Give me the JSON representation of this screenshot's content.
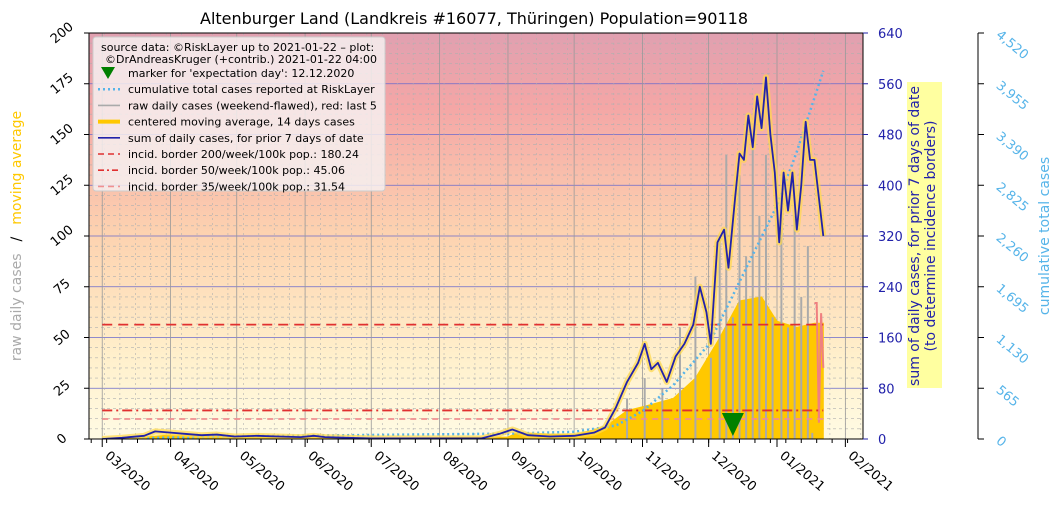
{
  "chart_data": {
    "type": "line",
    "title": "Altenburger Land (Landkreis #16077, Thüringen) Population=90118",
    "ylabel_left": [
      "raw daily cases",
      "/",
      "moving average"
    ],
    "ylabel_right": [
      "sum of daily cases, for prior 7 days of date",
      "(to determine incidence borders)"
    ],
    "ylabel_far_right": "cumulative total cases",
    "left_ylim": [
      0,
      200
    ],
    "left_ticks": [
      "0",
      "25",
      "50",
      "75",
      "100",
      "125",
      "150",
      "175",
      "200"
    ],
    "right_ylim": [
      0,
      640
    ],
    "right_ticks": [
      "0",
      "80",
      "160",
      "240",
      "320",
      "400",
      "480",
      "560",
      "640"
    ],
    "far_right_ylim": [
      0,
      4520
    ],
    "far_right_ticks": [
      "0",
      "565",
      "1,130",
      "1,695",
      "2,260",
      "2,825",
      "3,390",
      "3,955",
      "4,520"
    ],
    "x_ticks": [
      "03/2020",
      "04/2020",
      "05/2020",
      "06/2020",
      "07/2020",
      "08/2020",
      "09/2020",
      "10/2020",
      "11/2020",
      "12/2020",
      "01/2021",
      "02/2021"
    ],
    "legend": {
      "source": "source data: ©RiskLayer up to 2021-01-22 – plot:",
      "source2": "©DrAndreasKruger (+contrib.) 2021-01-22 04:00",
      "entries": [
        {
          "label": "marker for 'expectation day': 12.12.2020",
          "color": "#008000",
          "style": "triangle"
        },
        {
          "label": "cumulative total cases reported at RiskLayer",
          "color": "#56b4e9",
          "style": "dotted"
        },
        {
          "label": "raw daily cases (weekend-flawed), red: last 5",
          "color": "#aaaaaa",
          "style": "solid"
        },
        {
          "label": "centered moving average, 14 days cases",
          "color": "#ffc800",
          "style": "thick"
        },
        {
          "label": "sum of daily cases, for prior 7 days of date",
          "color": "#2222aa",
          "style": "solid"
        },
        {
          "label": "incid. border 200/week/100k pop.: 180.24",
          "color": "#e03030",
          "style": "dashed"
        },
        {
          "label": "incid. border 50/week/100k pop.: 45.06",
          "color": "#e03030",
          "style": "dashdot"
        },
        {
          "label": "incid. border 35/week/100k pop.: 31.54",
          "color": "#f09090",
          "style": "dashed"
        }
      ]
    },
    "incidence_borders": [
      180.24,
      45.06,
      31.54
    ],
    "expectation_day": "2020-12-12",
    "weekly_sum": [
      [
        "2020-03-01",
        0
      ],
      [
        "2020-03-10",
        2
      ],
      [
        "2020-03-20",
        5
      ],
      [
        "2020-03-25",
        12
      ],
      [
        "2020-04-01",
        10
      ],
      [
        "2020-04-08",
        8
      ],
      [
        "2020-04-15",
        6
      ],
      [
        "2020-04-22",
        7
      ],
      [
        "2020-04-30",
        4
      ],
      [
        "2020-05-10",
        5
      ],
      [
        "2020-05-20",
        4
      ],
      [
        "2020-05-30",
        3
      ],
      [
        "2020-06-05",
        5
      ],
      [
        "2020-06-10",
        3
      ],
      [
        "2020-06-20",
        2
      ],
      [
        "2020-07-01",
        1
      ],
      [
        "2020-07-15",
        1
      ],
      [
        "2020-08-01",
        1
      ],
      [
        "2020-08-20",
        1
      ],
      [
        "2020-08-28",
        8
      ],
      [
        "2020-09-03",
        15
      ],
      [
        "2020-09-10",
        6
      ],
      [
        "2020-09-20",
        4
      ],
      [
        "2020-10-01",
        5
      ],
      [
        "2020-10-10",
        10
      ],
      [
        "2020-10-15",
        18
      ],
      [
        "2020-10-20",
        50
      ],
      [
        "2020-10-25",
        90
      ],
      [
        "2020-10-30",
        120
      ],
      [
        "2020-11-02",
        150
      ],
      [
        "2020-11-05",
        110
      ],
      [
        "2020-11-08",
        120
      ],
      [
        "2020-11-12",
        90
      ],
      [
        "2020-11-16",
        130
      ],
      [
        "2020-11-20",
        150
      ],
      [
        "2020-11-24",
        180
      ],
      [
        "2020-11-27",
        240
      ],
      [
        "2020-11-30",
        200
      ],
      [
        "2020-12-02",
        150
      ],
      [
        "2020-12-05",
        310
      ],
      [
        "2020-12-08",
        330
      ],
      [
        "2020-12-10",
        270
      ],
      [
        "2020-12-13",
        380
      ],
      [
        "2020-12-15",
        450
      ],
      [
        "2020-12-17",
        440
      ],
      [
        "2020-12-19",
        510
      ],
      [
        "2020-12-21",
        460
      ],
      [
        "2020-12-23",
        540
      ],
      [
        "2020-12-25",
        490
      ],
      [
        "2020-12-27",
        570
      ],
      [
        "2020-12-29",
        480
      ],
      [
        "2020-12-31",
        420
      ],
      [
        "2021-01-02",
        310
      ],
      [
        "2021-01-04",
        420
      ],
      [
        "2021-01-06",
        360
      ],
      [
        "2021-01-08",
        420
      ],
      [
        "2021-01-10",
        330
      ],
      [
        "2021-01-12",
        400
      ],
      [
        "2021-01-14",
        500
      ],
      [
        "2021-01-16",
        440
      ],
      [
        "2021-01-18",
        440
      ],
      [
        "2021-01-20",
        380
      ],
      [
        "2021-01-22",
        320
      ]
    ],
    "cumulative": [
      [
        "2020-03-01",
        0
      ],
      [
        "2020-05-01",
        30
      ],
      [
        "2020-07-01",
        45
      ],
      [
        "2020-09-01",
        60
      ],
      [
        "2020-10-01",
        80
      ],
      [
        "2020-10-20",
        150
      ],
      [
        "2020-11-01",
        310
      ],
      [
        "2020-11-15",
        600
      ],
      [
        "2020-12-01",
        1050
      ],
      [
        "2020-12-15",
        1750
      ],
      [
        "2021-01-01",
        2600
      ],
      [
        "2021-01-10",
        3200
      ],
      [
        "2021-01-22",
        4100
      ]
    ],
    "moving_average": [
      [
        "2020-03-01",
        0
      ],
      [
        "2020-03-20",
        1
      ],
      [
        "2020-04-01",
        2
      ],
      [
        "2020-05-01",
        1
      ],
      [
        "2020-07-01",
        0.3
      ],
      [
        "2020-09-01",
        1
      ],
      [
        "2020-09-05",
        3
      ],
      [
        "2020-10-01",
        2
      ],
      [
        "2020-10-15",
        6
      ],
      [
        "2020-10-25",
        14
      ],
      [
        "2020-11-05",
        17
      ],
      [
        "2020-11-15",
        20
      ],
      [
        "2020-11-25",
        30
      ],
      [
        "2020-12-05",
        48
      ],
      [
        "2020-12-15",
        68
      ],
      [
        "2020-12-25",
        70
      ],
      [
        "2021-01-01",
        58
      ],
      [
        "2021-01-10",
        55
      ],
      [
        "2021-01-18",
        57
      ],
      [
        "2021-01-22",
        57
      ]
    ],
    "raw_daily_gray": [
      [
        "2020-10-25",
        20
      ],
      [
        "2020-11-02",
        30
      ],
      [
        "2020-11-10",
        25
      ],
      [
        "2020-11-18",
        55
      ],
      [
        "2020-11-25",
        80
      ],
      [
        "2020-12-02",
        40
      ],
      [
        "2020-12-06",
        100
      ],
      [
        "2020-12-09",
        140
      ],
      [
        "2020-12-12",
        60
      ],
      [
        "2020-12-15",
        130
      ],
      [
        "2020-12-18",
        90
      ],
      [
        "2020-12-21",
        150
      ],
      [
        "2020-12-24",
        110
      ],
      [
        "2020-12-27",
        140
      ],
      [
        "2020-12-30",
        60
      ],
      [
        "2021-01-03",
        120
      ],
      [
        "2021-01-06",
        55
      ],
      [
        "2021-01-09",
        110
      ],
      [
        "2021-01-12",
        70
      ],
      [
        "2021-01-15",
        95
      ],
      [
        "2021-01-17",
        3
      ]
    ],
    "raw_daily_red_last5": [
      [
        "2021-01-18",
        67
      ],
      [
        "2021-01-19",
        67
      ],
      [
        "2021-01-20",
        8
      ],
      [
        "2021-01-21",
        62
      ],
      [
        "2021-01-22",
        35
      ]
    ]
  }
}
